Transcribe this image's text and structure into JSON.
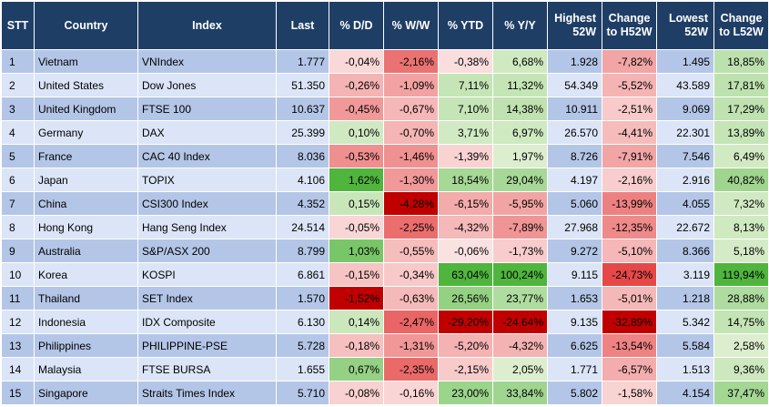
{
  "headers": {
    "stt": "STT",
    "country": "Country",
    "index": "Index",
    "last": "Last",
    "dd": "% D/D",
    "ww": "% W/W",
    "ytd": "% YTD",
    "yy": "% Y/Y",
    "highest": "Highest 52W",
    "chg_h": "Change to H52W",
    "lowest": "Lowest 52W",
    "chg_l": "Change to L52W"
  },
  "rows": [
    {
      "stt": "1",
      "country": "Vietnam",
      "index": "VNIndex",
      "last": "1.777",
      "dd": "-0,04%",
      "ww": "-2,16%",
      "ytd": "-0,38%",
      "yy": "6,68%",
      "high": "1.928",
      "chg_h": "-7,82%",
      "low": "1.495",
      "chg_l": "18,85%"
    },
    {
      "stt": "2",
      "country": "United States",
      "index": "Dow Jones",
      "last": "51.350",
      "dd": "-0,26%",
      "ww": "-1,09%",
      "ytd": "7,11%",
      "yy": "11,32%",
      "high": "54.349",
      "chg_h": "-5,52%",
      "low": "43.589",
      "chg_l": "17,81%"
    },
    {
      "stt": "3",
      "country": "United Kingdom",
      "index": "FTSE 100",
      "last": "10.637",
      "dd": "-0,45%",
      "ww": "-0,67%",
      "ytd": "7,10%",
      "yy": "14,38%",
      "high": "10.911",
      "chg_h": "-2,51%",
      "low": "9.069",
      "chg_l": "17,29%"
    },
    {
      "stt": "4",
      "country": "Germany",
      "index": "DAX",
      "last": "25.399",
      "dd": "0,10%",
      "ww": "-0,70%",
      "ytd": "3,71%",
      "yy": "6,97%",
      "high": "26.570",
      "chg_h": "-4,41%",
      "low": "22.301",
      "chg_l": "13,89%"
    },
    {
      "stt": "5",
      "country": "France",
      "index": "CAC 40 Index",
      "last": "8.036",
      "dd": "-0,53%",
      "ww": "-1,46%",
      "ytd": "-1,39%",
      "yy": "1,97%",
      "high": "8.726",
      "chg_h": "-7,91%",
      "low": "7.546",
      "chg_l": "6,49%"
    },
    {
      "stt": "6",
      "country": "Japan",
      "index": "TOPIX",
      "last": "4.106",
      "dd": "1,62%",
      "ww": "-1,30%",
      "ytd": "18,54%",
      "yy": "29,04%",
      "high": "4.197",
      "chg_h": "-2,16%",
      "low": "2.916",
      "chg_l": "40,82%"
    },
    {
      "stt": "7",
      "country": "China",
      "index": "CSI300 Index",
      "last": "4.352",
      "dd": "0,15%",
      "ww": "-4,28%",
      "ytd": "-6,15%",
      "yy": "-5,95%",
      "high": "5.060",
      "chg_h": "-13,99%",
      "low": "4.055",
      "chg_l": "7,32%"
    },
    {
      "stt": "8",
      "country": "Hong Kong",
      "index": "Hang Seng Index",
      "last": "24.514",
      "dd": "-0,05%",
      "ww": "-2,25%",
      "ytd": "-4,32%",
      "yy": "-7,89%",
      "high": "27.968",
      "chg_h": "-12,35%",
      "low": "22.672",
      "chg_l": "8,13%"
    },
    {
      "stt": "9",
      "country": "Australia",
      "index": "S&P/ASX 200",
      "last": "8.799",
      "dd": "1,03%",
      "ww": "-0,55%",
      "ytd": "-0,06%",
      "yy": "-1,73%",
      "high": "9.272",
      "chg_h": "-5,10%",
      "low": "8.366",
      "chg_l": "5,18%"
    },
    {
      "stt": "10",
      "country": "Korea",
      "index": "KOSPI",
      "last": "6.861",
      "dd": "-0,15%",
      "ww": "-0,34%",
      "ytd": "63,04%",
      "yy": "100,24%",
      "high": "9.115",
      "chg_h": "-24,73%",
      "low": "3.119",
      "chg_l": "119,94%"
    },
    {
      "stt": "11",
      "country": "Thailand",
      "index": "SET Index",
      "last": "1.570",
      "dd": "-1,52%",
      "ww": "-0,63%",
      "ytd": "26,56%",
      "yy": "23,77%",
      "high": "1.653",
      "chg_h": "-5,01%",
      "low": "1.218",
      "chg_l": "28,88%"
    },
    {
      "stt": "12",
      "country": "Indonesia",
      "index": "IDX Composite",
      "last": "6.130",
      "dd": "0,14%",
      "ww": "-2,47%",
      "ytd": "-29,20%",
      "yy": "-24,64%",
      "high": "9.135",
      "chg_h": "-32,89%",
      "low": "5.342",
      "chg_l": "14,75%"
    },
    {
      "stt": "13",
      "country": "Philippines",
      "index": "PHILIPPINE-PSE",
      "last": "5.728",
      "dd": "-0,18%",
      "ww": "-1,31%",
      "ytd": "-5,20%",
      "yy": "-4,32%",
      "high": "6.625",
      "chg_h": "-13,54%",
      "low": "5.584",
      "chg_l": "2,58%"
    },
    {
      "stt": "14",
      "country": "Malaysia",
      "index": "FTSE BURSA",
      "last": "1.655",
      "dd": "0,67%",
      "ww": "-2,35%",
      "ytd": "-2,15%",
      "yy": "2,05%",
      "high": "1.771",
      "chg_h": "-6,57%",
      "low": "1.513",
      "chg_l": "9,36%"
    },
    {
      "stt": "15",
      "country": "Singapore",
      "index": "Straits Times Index",
      "last": "5.710",
      "dd": "-0,08%",
      "ww": "-0,16%",
      "ytd": "23,00%",
      "yy": "33,84%",
      "high": "5.802",
      "chg_h": "-1,58%",
      "low": "4.154",
      "chg_l": "37,47%"
    }
  ],
  "colors": {
    "header_bg": "#1f3e66",
    "row_odd": "#b4c6e7",
    "row_even": "#dbe5f7"
  }
}
